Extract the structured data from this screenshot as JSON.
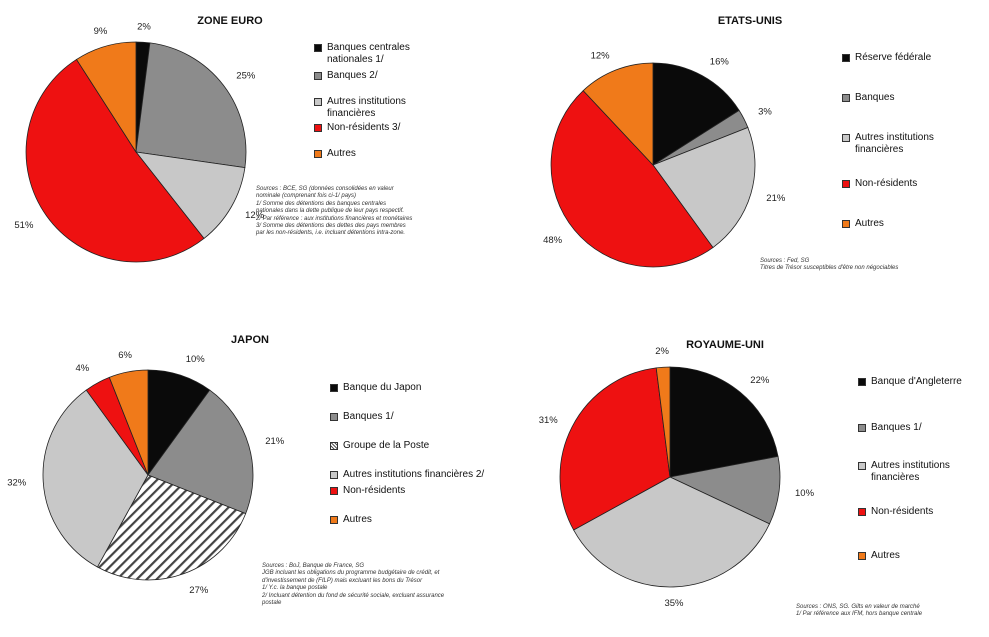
{
  "chart_data": [
    {
      "type": "pie",
      "title": "ZONE EURO",
      "slices": [
        {
          "label": "Banques centrales nationales 1/",
          "value": 2,
          "text": "2%",
          "color": "#0a0a0a",
          "pattern": "solid"
        },
        {
          "label": "Banques 2/",
          "value": 25,
          "text": "25%",
          "color": "#8c8c8c",
          "pattern": "solid"
        },
        {
          "label": "Autres institutions financières",
          "value": 12,
          "text": "12%",
          "color": "#c8c8c8",
          "pattern": "solid"
        },
        {
          "label": "Non-résidents 3/",
          "value": 51,
          "text": "51%",
          "color": "#ee1111",
          "pattern": "solid"
        },
        {
          "label": "Autres",
          "value": 9,
          "text": "9%",
          "color": "#f07a1a",
          "pattern": "solid"
        }
      ],
      "legend": [
        "Banques centrales nationales 1/",
        "Banques 2/",
        "Autres institutions financières",
        "Non-résidents 3/",
        "Autres"
      ],
      "notes": [
        "Sources : BCE, SG (données consolidées en valeur",
        "nominale (comprenant fois ci-1/ pays)",
        "1/ Somme des détentions des banques centrales",
        "nationales dans la dette publique de leur pays respectif.",
        "2/ Par référence : aux institutions financières et monétaires",
        "3/ Somme des détentions des dettes des pays membres",
        "par les non-résidents, i.e. incluant détentions intra-zone."
      ]
    },
    {
      "type": "pie",
      "title": "ETATS-UNIS",
      "slices": [
        {
          "label": "Réserve fédérale",
          "value": 16,
          "text": "16%",
          "color": "#0a0a0a",
          "pattern": "solid"
        },
        {
          "label": "Banques",
          "value": 3,
          "text": "3%",
          "color": "#8c8c8c",
          "pattern": "solid"
        },
        {
          "label": "Autres institutions financières",
          "value": 21,
          "text": "21%",
          "color": "#c8c8c8",
          "pattern": "solid"
        },
        {
          "label": "Non-résidents",
          "value": 48,
          "text": "48%",
          "color": "#ee1111",
          "pattern": "solid"
        },
        {
          "label": "Autres",
          "value": 12,
          "text": "12%",
          "color": "#f07a1a",
          "pattern": "solid"
        }
      ],
      "legend": [
        "Réserve fédérale",
        "Banques",
        "Autres institutions financières",
        "Non-résidents",
        "Autres"
      ],
      "notes": [
        "Sources : Fed, SG",
        "Titres de Trésor susceptibles d'être non négociables"
      ]
    },
    {
      "type": "pie",
      "title": "JAPON",
      "slices": [
        {
          "label": "Banque du Japon",
          "value": 10,
          "text": "10%",
          "color": "#0a0a0a",
          "pattern": "solid"
        },
        {
          "label": "Banques 1/",
          "value": 21,
          "text": "21%",
          "color": "#8c8c8c",
          "pattern": "solid"
        },
        {
          "label": "Groupe de la Poste",
          "value": 27,
          "text": "27%",
          "color": "#ffffff",
          "pattern": "hatch"
        },
        {
          "label": "Autres institutions financières 2/",
          "value": 32,
          "text": "32%",
          "color": "#c8c8c8",
          "pattern": "solid"
        },
        {
          "label": "Non-résidents",
          "value": 4,
          "text": "4%",
          "color": "#ee1111",
          "pattern": "solid"
        },
        {
          "label": "Autres",
          "value": 6,
          "text": "6%",
          "color": "#f07a1a",
          "pattern": "solid"
        }
      ],
      "legend": [
        "Banque du Japon",
        "Banques 1/",
        "Groupe de la Poste",
        "Autres institutions financières 2/",
        "Non-résidents",
        "Autres"
      ],
      "notes": [
        "Sources : BoJ, Banque de France, SG",
        "JGB incluant les obligations du programme budgétaire de crédit, et",
        "d'investissement de (FILP) mais excluant les bons du Trésor",
        "1/ Y.c. la banque postale",
        "2/ Incluant détention du fond de sécurité sociale, excluant assurance",
        "postale"
      ]
    },
    {
      "type": "pie",
      "title": "ROYAUME-UNI",
      "slices": [
        {
          "label": "Banque d'Angleterre",
          "value": 22,
          "text": "22%",
          "color": "#0a0a0a",
          "pattern": "solid"
        },
        {
          "label": "Banques 1/",
          "value": 10,
          "text": "10%",
          "color": "#8c8c8c",
          "pattern": "solid"
        },
        {
          "label": "Autres institutions financières",
          "value": 35,
          "text": "35%",
          "color": "#c8c8c8",
          "pattern": "solid"
        },
        {
          "label": "Non-résidents",
          "value": 31,
          "text": "31%",
          "color": "#ee1111",
          "pattern": "solid"
        },
        {
          "label": "Autres",
          "value": 2,
          "text": "2%",
          "color": "#f07a1a",
          "pattern": "solid"
        }
      ],
      "legend": [
        "Banque d'Angleterre",
        "Banques 1/",
        "Autres institutions financières",
        "Non-résidents",
        "Autres"
      ],
      "notes": [
        "Sources : ONS, SG. Gilts en valeur de marché",
        "1/ Par référence aux IFM, hors banque centrale"
      ]
    }
  ]
}
